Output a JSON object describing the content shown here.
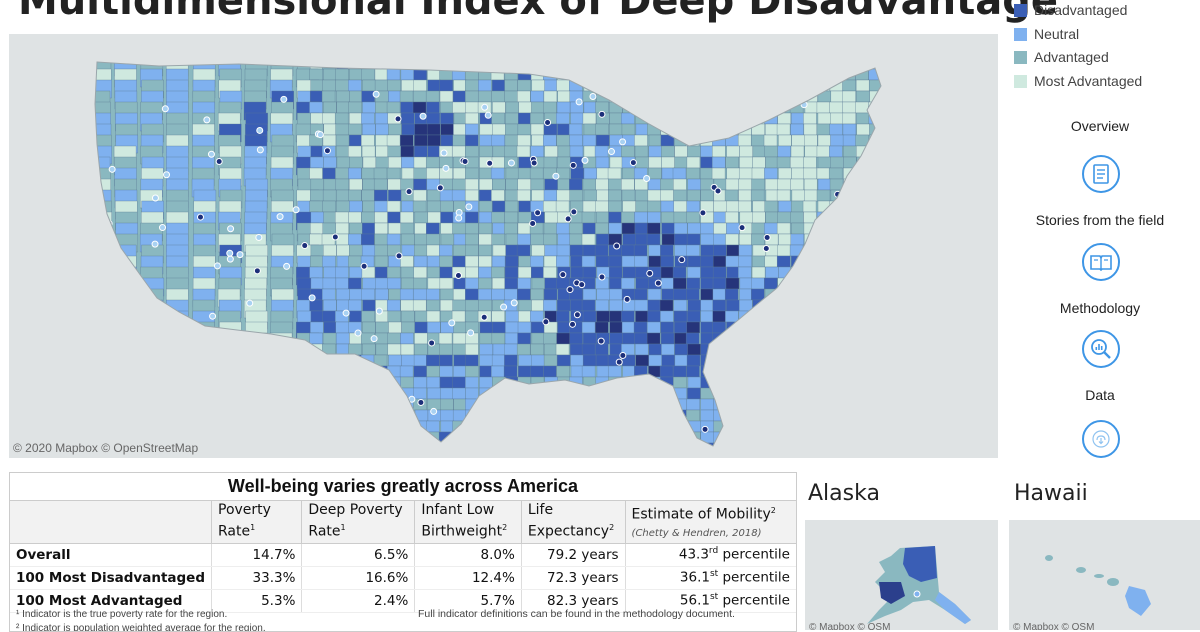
{
  "title": "Multidimensional Index of Deep Disadvantage",
  "legend": {
    "items": [
      {
        "label": "Disadvantaged",
        "color": "#3a5eb5"
      },
      {
        "label": "Neutral",
        "color": "#7fb1ef"
      },
      {
        "label": "Advantaged",
        "color": "#8ab8c0"
      },
      {
        "label": "Most Advantaged",
        "color": "#cfe9df"
      }
    ]
  },
  "map": {
    "attribution": "© 2020 Mapbox  © OpenStreetMap"
  },
  "nav": {
    "items": [
      {
        "label": "Overview",
        "icon": "document-icon"
      },
      {
        "label": "Stories from the field",
        "icon": "book-icon"
      },
      {
        "label": "Methodology",
        "icon": "magnifier-chart-icon"
      },
      {
        "label": "Data",
        "icon": "cloud-download-icon"
      }
    ]
  },
  "table": {
    "title": "Well-being varies greatly across America",
    "headers": [
      {
        "line1": "",
        "line2": "",
        "sup": ""
      },
      {
        "line1": "Poverty",
        "line2": "Rate",
        "sup": "1"
      },
      {
        "line1": "Deep Poverty",
        "line2": "Rate",
        "sup": "1"
      },
      {
        "line1": "Infant Low",
        "line2": "Birthweight",
        "sup": "2"
      },
      {
        "line1": "Life",
        "line2": "Expectancy",
        "sup": "2"
      },
      {
        "line1": "Estimate of Mobility",
        "line2": "(Chetty & Hendren, 2018)",
        "sup": "2"
      }
    ],
    "rows": [
      {
        "label": "Overall",
        "poverty": "14.7%",
        "deep_poverty": "6.5%",
        "low_birthweight": "8.0%",
        "life_expectancy": "79.2 years",
        "mobility_num": "43.3",
        "mobility_sup": "rd",
        "mobility_unit": " percentile"
      },
      {
        "label": "100 Most Disadvantaged",
        "poverty": "33.3%",
        "deep_poverty": "16.6%",
        "low_birthweight": "12.4%",
        "life_expectancy": "72.3 years",
        "mobility_num": "36.1",
        "mobility_sup": "st",
        "mobility_unit": " percentile"
      },
      {
        "label": "100 Most Advantaged",
        "poverty": "5.3%",
        "deep_poverty": "2.4%",
        "low_birthweight": "5.7%",
        "life_expectancy": "82.3 years",
        "mobility_num": "56.1",
        "mobility_sup": "st",
        "mobility_unit": " percentile"
      }
    ],
    "footnote1": "¹ Indicator is the true poverty rate for the region.",
    "footnote2": "² Indicator is population weighted average for the region.",
    "definitions_note": "Full indicator definitions can be found in the methodology document."
  },
  "insets": {
    "alaska": {
      "title": "Alaska",
      "attribution": "© Mapbox  © OSM"
    },
    "hawaii": {
      "title": "Hawaii",
      "attribution": "© Mapbox  © OSM"
    }
  }
}
